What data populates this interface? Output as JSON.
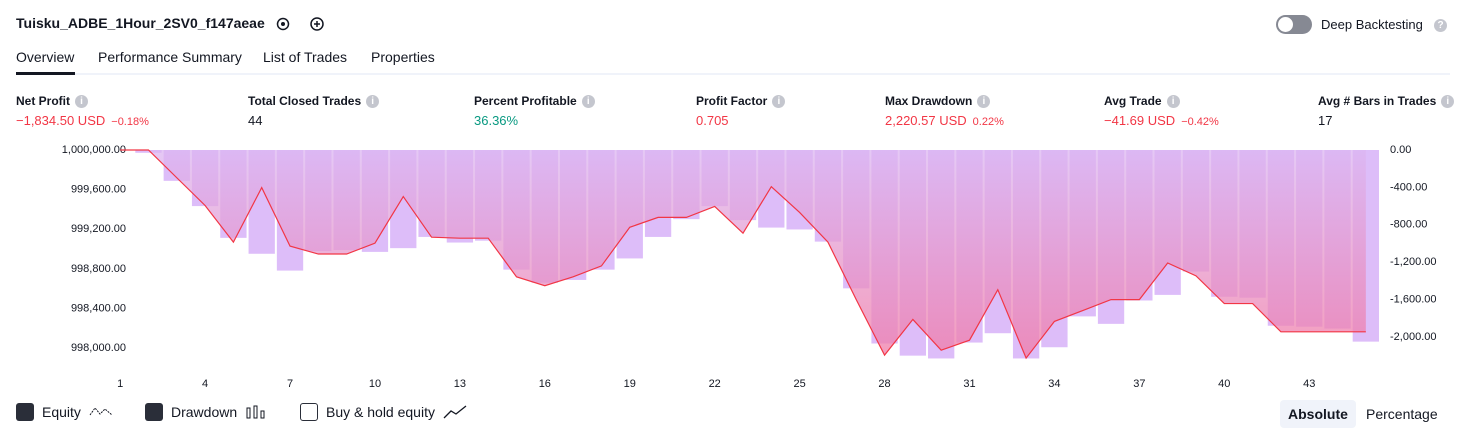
{
  "header": {
    "title": "Tuisku_ADBE_1Hour_2SV0_f147aeae",
    "toggle_label": "Deep Backtesting"
  },
  "tabs": [
    "Overview",
    "Performance Summary",
    "List of Trades",
    "Properties"
  ],
  "metrics": [
    {
      "label": "Net Profit",
      "value": "−1,834.50 USD",
      "sub": "−0.18%",
      "color": "#f23645"
    },
    {
      "label": "Total Closed Trades",
      "value": "44",
      "color": "#131722"
    },
    {
      "label": "Percent Profitable",
      "value": "36.36%",
      "color": "#089981"
    },
    {
      "label": "Profit Factor",
      "value": "0.705",
      "color": "#f23645"
    },
    {
      "label": "Max Drawdown",
      "value": "2,220.57 USD",
      "sub": "0.22%",
      "color": "#f23645"
    },
    {
      "label": "Avg Trade",
      "value": "−41.69 USD",
      "sub": "−0.42%",
      "color": "#f23645"
    },
    {
      "label": "Avg # Bars in Trades",
      "value": "17",
      "color": "#131722"
    }
  ],
  "chart_data": {
    "type": "combo",
    "x": [
      1,
      2,
      3,
      4,
      5,
      6,
      7,
      8,
      9,
      10,
      11,
      12,
      13,
      14,
      15,
      16,
      17,
      18,
      19,
      20,
      21,
      22,
      23,
      24,
      25,
      26,
      27,
      28,
      29,
      30,
      31,
      32,
      33,
      34,
      35,
      36,
      37,
      38,
      39,
      40,
      41,
      42,
      43,
      44,
      45
    ],
    "xlim": [
      0.5,
      45.5
    ],
    "xticks": [
      1,
      4,
      7,
      10,
      13,
      16,
      19,
      22,
      25,
      28,
      31,
      34,
      37,
      40,
      43
    ],
    "ylim": [
      997830,
      1000000
    ],
    "yticks": [
      {
        "value": 1000000,
        "label": "1,000,000.00"
      },
      {
        "value": 999600,
        "label": "999,600.00"
      },
      {
        "value": 999200,
        "label": "999,200.00"
      },
      {
        "value": 998800,
        "label": "998,800.00"
      },
      {
        "value": 998400,
        "label": "998,400.00"
      },
      {
        "value": 998000,
        "label": "998,000.00"
      }
    ],
    "y2lim": [
      -2300,
      0
    ],
    "y2ticks": [
      {
        "value": 0,
        "label": "0.00"
      },
      {
        "value": -400,
        "label": "-400.00"
      },
      {
        "value": -800,
        "label": "-800.00"
      },
      {
        "value": -1200,
        "label": "-1,200.00"
      },
      {
        "value": -1600,
        "label": "-1,600.00"
      },
      {
        "value": -2000,
        "label": "-2,000.00"
      }
    ],
    "series": [
      {
        "name": "Equity",
        "color": "#f23645",
        "values": [
          1000000,
          1000000,
          999720,
          999440,
          999070,
          999620,
          999030,
          998950,
          998950,
          999060,
          999530,
          999120,
          999110,
          999110,
          998720,
          998630,
          998720,
          998830,
          999220,
          999320,
          999320,
          999430,
          999160,
          999630,
          999370,
          999070,
          998490,
          997930,
          998290,
          997980,
          998080,
          998590,
          997900,
          998270,
          998380,
          998490,
          998490,
          998860,
          998730,
          998450,
          998450,
          998165,
          998165,
          998165,
          998165
        ]
      },
      {
        "name": "Drawdown",
        "color": "#d4adf8",
        "axis": "y2",
        "values": [
          0,
          -30,
          -330,
          -600,
          -940,
          -1110,
          -1290,
          -1080,
          -1070,
          -1090,
          -1050,
          -930,
          -990,
          -970,
          -1280,
          -1420,
          -1390,
          -1280,
          -1160,
          -930,
          -740,
          -600,
          -750,
          -830,
          -850,
          -980,
          -1480,
          -2070,
          -2200,
          -2230,
          -2060,
          -1960,
          -2230,
          -2110,
          -1780,
          -1860,
          -1610,
          -1550,
          -1300,
          -1570,
          -1580,
          -1880,
          -1890,
          -1910,
          -2050
        ]
      }
    ],
    "extra_legend": "Buy & hold equity"
  },
  "view_buttons": [
    "Absolute",
    "Percentage"
  ]
}
